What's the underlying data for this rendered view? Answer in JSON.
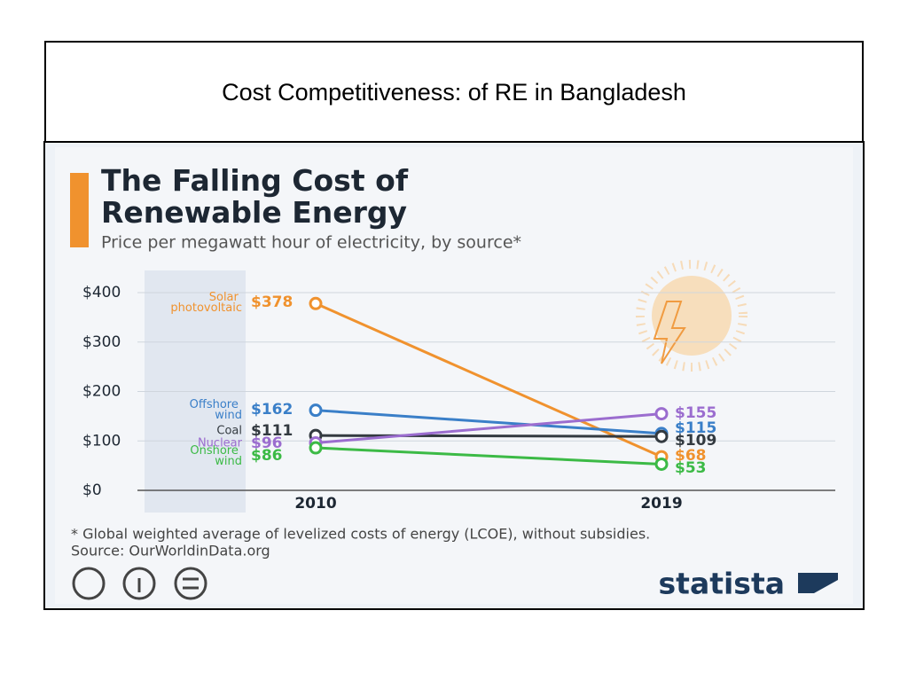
{
  "slide_title": "Cost Competitiveness: of RE in Bangladesh",
  "chart_data": {
    "type": "line",
    "title": "The Falling Cost of Renewable Energy",
    "subtitle": "Price per megawatt hour of electricity, by source*",
    "categories": [
      "2010",
      "2019"
    ],
    "series": [
      {
        "name": "Solar photovoltaic",
        "color": "#f0922e",
        "values": [
          378,
          68
        ],
        "value_labels": [
          "$378",
          "$68"
        ]
      },
      {
        "name": "Offshore wind",
        "color": "#3a7fc8",
        "values": [
          162,
          115
        ],
        "value_labels": [
          "$162",
          "$115"
        ]
      },
      {
        "name": "Coal",
        "color": "#333a40",
        "values": [
          111,
          109
        ],
        "value_labels": [
          "$111",
          "$109"
        ]
      },
      {
        "name": "Nuclear",
        "color": "#9b6dcf",
        "values": [
          96,
          155
        ],
        "value_labels": [
          "$96",
          "$155"
        ]
      },
      {
        "name": "Onshore wind",
        "color": "#3cba46",
        "values": [
          86,
          53
        ],
        "value_labels": [
          "$86",
          "$53"
        ]
      }
    ],
    "ylim": [
      0,
      400
    ],
    "yticks": [
      {
        "value": 0,
        "label": "$0"
      },
      {
        "value": 100,
        "label": "$100"
      },
      {
        "value": 200,
        "label": "$200"
      },
      {
        "value": 300,
        "label": "$300"
      },
      {
        "value": 400,
        "label": "$400"
      }
    ],
    "grid": true,
    "footnote": "* Global weighted average of levelized costs of energy (LCOE), without subsidies.",
    "source": "Source: OurWorldinData.org",
    "brand": "statista"
  }
}
